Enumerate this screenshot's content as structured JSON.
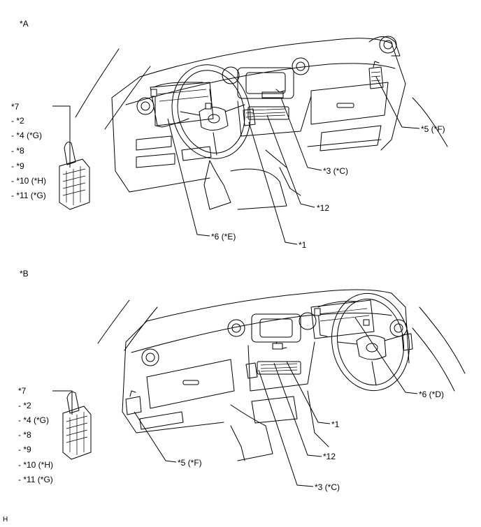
{
  "views": {
    "a": {
      "view_label": "*A",
      "component_list": [
        "*7",
        "- *2",
        "- *4 (*G)",
        "- *8",
        "- *9",
        "- *10 (*H)",
        "- *11 (*G)"
      ],
      "callouts": {
        "c5": "*5 (*F)",
        "c3": "*3 (*C)",
        "c12": "*12",
        "c6": "*6 (*E)",
        "c1": "*1"
      }
    },
    "b": {
      "view_label": "*B",
      "component_list": [
        "*7",
        "- *2",
        "- *4 (*G)",
        "- *8",
        "- *9",
        "- *10 (*H)",
        "- *11 (*G)"
      ],
      "callouts": {
        "c6": "*6 (*D)",
        "c1": "*1",
        "c12": "*12",
        "c5": "*5 (*F)",
        "c3": "*3 (*C)"
      }
    }
  },
  "footer_code": "H"
}
